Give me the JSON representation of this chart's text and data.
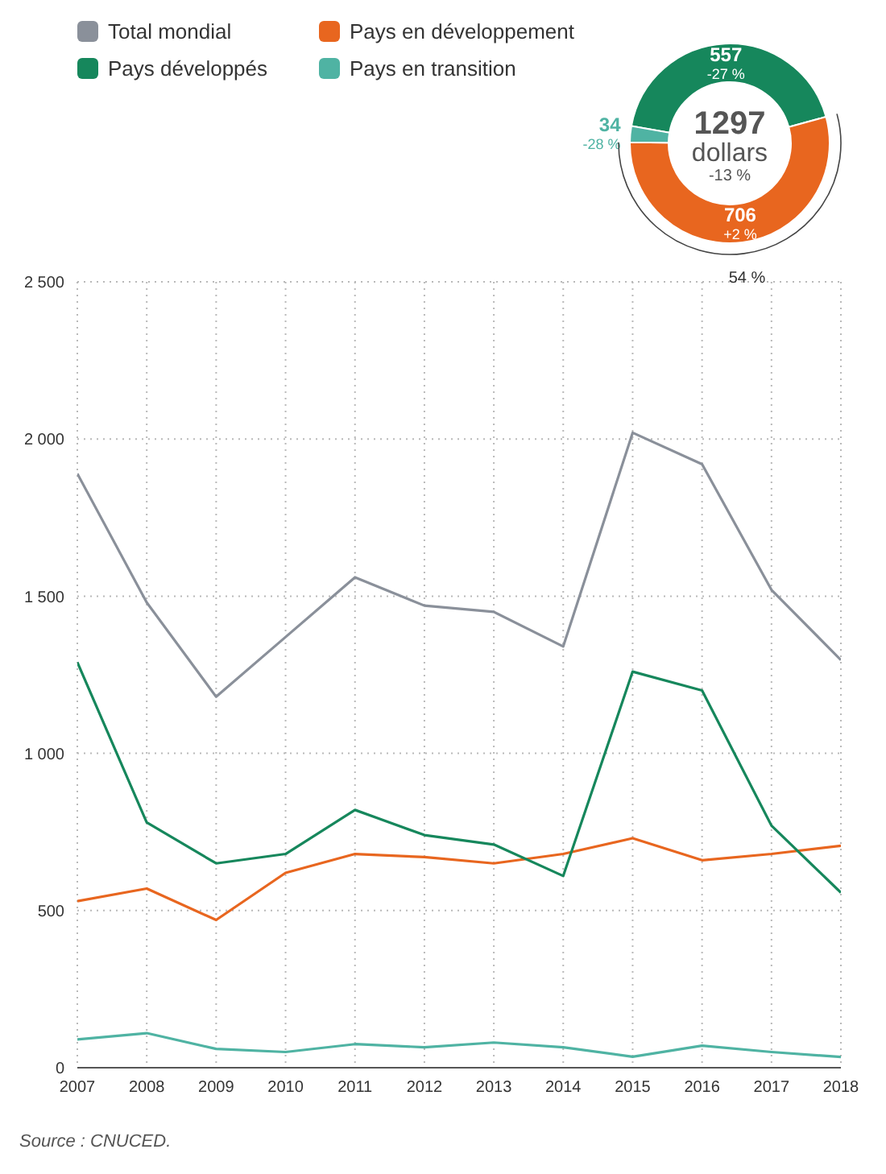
{
  "chart_data": [
    {
      "type": "line",
      "xlim": [
        2007,
        2018
      ],
      "xticks": [
        2007,
        2008,
        2009,
        2010,
        2011,
        2012,
        2013,
        2014,
        2015,
        2016,
        2017,
        2018
      ],
      "ylim": [
        0,
        2500
      ],
      "yticks": [
        0,
        500,
        {
          "value": 1000,
          "label": "1 000"
        },
        {
          "value": 1500,
          "label": "1 500"
        },
        {
          "value": 2000,
          "label": "2 000"
        },
        {
          "value": 2500,
          "label": "2 500"
        }
      ],
      "grid": true,
      "legend": "top left",
      "marker": "none",
      "line_style": "solid",
      "x": [
        2007,
        2008,
        2009,
        2010,
        2011,
        2012,
        2013,
        2014,
        2015,
        2016,
        2017,
        2018
      ],
      "series": [
        {
          "name": "Total mondial",
          "color": "#8a909a",
          "values": [
            1890,
            1480,
            1180,
            1370,
            1560,
            1470,
            1450,
            1340,
            2020,
            1920,
            1520,
            1297
          ]
        },
        {
          "name": "Pays en développement",
          "color": "#e8661f",
          "values": [
            530,
            570,
            470,
            620,
            680,
            670,
            650,
            680,
            730,
            660,
            680,
            706
          ]
        },
        {
          "name": "Pays développés",
          "color": "#16875c",
          "values": [
            1290,
            780,
            650,
            680,
            820,
            740,
            710,
            610,
            1260,
            1200,
            770,
            557
          ]
        },
        {
          "name": "Pays en transition",
          "color": "#4fb3a3",
          "values": [
            90,
            110,
            60,
            50,
            75,
            65,
            80,
            65,
            35,
            70,
            50,
            34
          ]
        }
      ],
      "annotations": [
        "Source : CNUCED."
      ]
    },
    {
      "type": "donut",
      "categories": [
        null,
        null,
        null
      ],
      "values": [
        557,
        706,
        34
      ],
      "colors": [
        "#16875c",
        "#e8661f",
        "#4fb3a3"
      ],
      "value_labels": [
        "557 -27 %",
        "706 +2 %",
        "34 -28 %"
      ],
      "annotations": [
        "1297",
        "dollars",
        "-13 %",
        "54 %"
      ]
    }
  ]
}
